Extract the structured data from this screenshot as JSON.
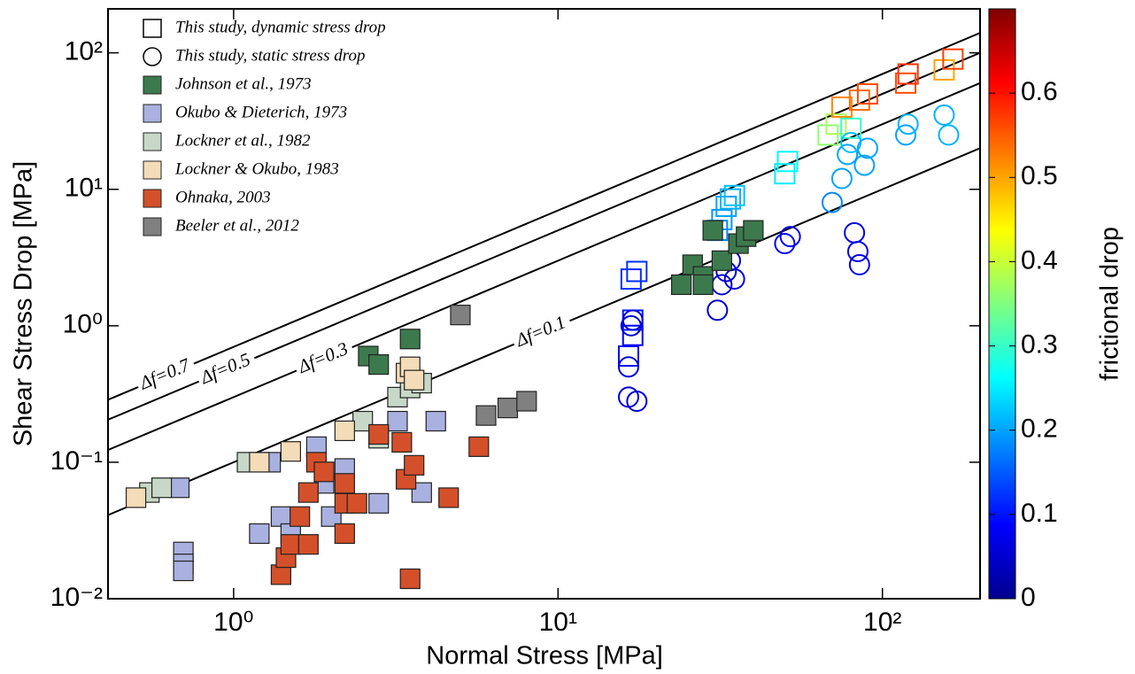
{
  "chart_data": {
    "type": "scatter",
    "xlabel": "Normal Stress [MPa]",
    "ylabel": "Shear Stress Drop [MPa]",
    "xlog": true,
    "ylog": true,
    "xlim": [
      0.41,
      200
    ],
    "ylim": [
      0.01,
      210
    ],
    "xticks": [
      {
        "value": 1,
        "label": "10⁰"
      },
      {
        "value": 10,
        "label": "10¹"
      },
      {
        "value": 100,
        "label": "10²"
      }
    ],
    "yticks": [
      {
        "value": 0.01,
        "label": "10⁻²"
      },
      {
        "value": 0.1,
        "label": "10⁻¹"
      },
      {
        "value": 1,
        "label": "10⁰"
      },
      {
        "value": 10,
        "label": "10¹"
      },
      {
        "value": 100,
        "label": "10²"
      }
    ],
    "colorbar": {
      "label": "frictional drop",
      "lim": [
        0,
        0.7
      ],
      "ticks": [
        0,
        0.1,
        0.2,
        0.3,
        0.4,
        0.5,
        0.6
      ]
    },
    "ratio_lines": [
      {
        "label": "Δf=0.7",
        "value": 0.7
      },
      {
        "label": "Δf=0.5",
        "value": 0.5
      },
      {
        "label": "Δf=0.3",
        "value": 0.3
      },
      {
        "label": "Δf=0.1",
        "value": 0.1
      }
    ],
    "series": [
      {
        "name": "This study, dynamic stress drop",
        "marker": "open-square",
        "x": [
          16.5,
          17,
          17,
          16.8,
          17.5,
          31,
          32,
          33,
          34,
          35,
          50,
          51,
          68,
          72,
          75,
          80,
          85,
          90,
          118,
          120,
          155,
          165
        ],
        "y": [
          0.6,
          0.85,
          1.1,
          2.2,
          2.5,
          5,
          6,
          7.5,
          8.5,
          9,
          13,
          16,
          25,
          30,
          40,
          28,
          45,
          50,
          60,
          70,
          75,
          90
        ],
        "c": [
          0.08,
          0.08,
          0.1,
          0.12,
          0.12,
          0.18,
          0.19,
          0.2,
          0.21,
          0.22,
          0.25,
          0.26,
          0.36,
          0.38,
          0.52,
          0.3,
          0.54,
          0.56,
          0.56,
          0.58,
          0.5,
          0.57
        ]
      },
      {
        "name": "This study, static stress drop",
        "marker": "open-circle",
        "x": [
          16.5,
          16.5,
          16.8,
          17,
          17.5,
          31,
          32,
          33,
          34,
          35,
          50,
          52,
          70,
          75,
          78,
          80,
          82,
          84,
          85,
          88,
          90,
          118,
          120,
          155,
          160
        ],
        "y": [
          0.3,
          0.5,
          1.0,
          1.1,
          0.28,
          1.3,
          2,
          2.5,
          3,
          2.2,
          4,
          4.5,
          8,
          12,
          18,
          22,
          4.8,
          3.5,
          2.8,
          15,
          20,
          25,
          30,
          35,
          25
        ],
        "c": [
          0.06,
          0.06,
          0.06,
          0.06,
          0.06,
          0.05,
          0.05,
          0.06,
          0.06,
          0.06,
          0.07,
          0.07,
          0.18,
          0.2,
          0.2,
          0.22,
          0.07,
          0.07,
          0.07,
          0.2,
          0.2,
          0.2,
          0.21,
          0.21,
          0.21
        ]
      },
      {
        "name": "Johnson et al., 1973",
        "marker": "square",
        "color": "#3c7a4d",
        "x": [
          2.6,
          2.8,
          3.5,
          24,
          26,
          28,
          30,
          32,
          36,
          38,
          40,
          28
        ],
        "y": [
          0.6,
          0.52,
          0.8,
          2,
          2.8,
          2.3,
          5,
          3,
          4,
          4.5,
          5,
          2
        ]
      },
      {
        "name": "Okubo & Dieterich, 1973",
        "marker": "square",
        "color": "#a9b1e0",
        "x": [
          0.68,
          0.7,
          0.7,
          0.7,
          1.3,
          1.4,
          1.5,
          1.8,
          1.9,
          2.2,
          2.8,
          3.2,
          3.8,
          4.2,
          1.2,
          2
        ],
        "y": [
          0.065,
          0.022,
          0.018,
          0.016,
          0.1,
          0.04,
          0.03,
          0.13,
          0.07,
          0.09,
          0.05,
          0.2,
          0.06,
          0.2,
          0.03,
          0.04
        ]
      },
      {
        "name": "Lockner et al., 1982",
        "marker": "square",
        "color": "#c8d8c8",
        "x": [
          0.55,
          0.6,
          1.1,
          2.5,
          3.2,
          3.5,
          3.8,
          2.8
        ],
        "y": [
          0.06,
          0.065,
          0.1,
          0.2,
          0.3,
          0.35,
          0.38,
          0.15
        ]
      },
      {
        "name": "Lockner & Okubo, 1983",
        "marker": "square",
        "color": "#f5dcb8",
        "x": [
          0.5,
          1.2,
          1.5,
          2.2,
          3.4,
          3.5,
          3.6
        ],
        "y": [
          0.055,
          0.1,
          0.12,
          0.17,
          0.45,
          0.5,
          0.4
        ]
      },
      {
        "name": "Ohnaka, 2003",
        "marker": "square",
        "color": "#d4502a",
        "x": [
          1.4,
          1.45,
          1.5,
          1.6,
          1.7,
          1.8,
          1.9,
          2.2,
          2.2,
          2.2,
          2.4,
          2.8,
          3.5,
          3.4,
          3.6,
          4.6,
          5.7,
          3.3,
          1.7
        ],
        "y": [
          0.015,
          0.02,
          0.025,
          0.04,
          0.06,
          0.1,
          0.085,
          0.07,
          0.05,
          0.03,
          0.05,
          0.16,
          0.014,
          0.075,
          0.095,
          0.055,
          0.13,
          0.14,
          0.025
        ]
      },
      {
        "name": "Beeler et al., 2012",
        "marker": "square",
        "color": "#808080",
        "x": [
          5,
          6,
          7,
          8
        ],
        "y": [
          1.2,
          0.22,
          0.25,
          0.28
        ]
      }
    ]
  }
}
